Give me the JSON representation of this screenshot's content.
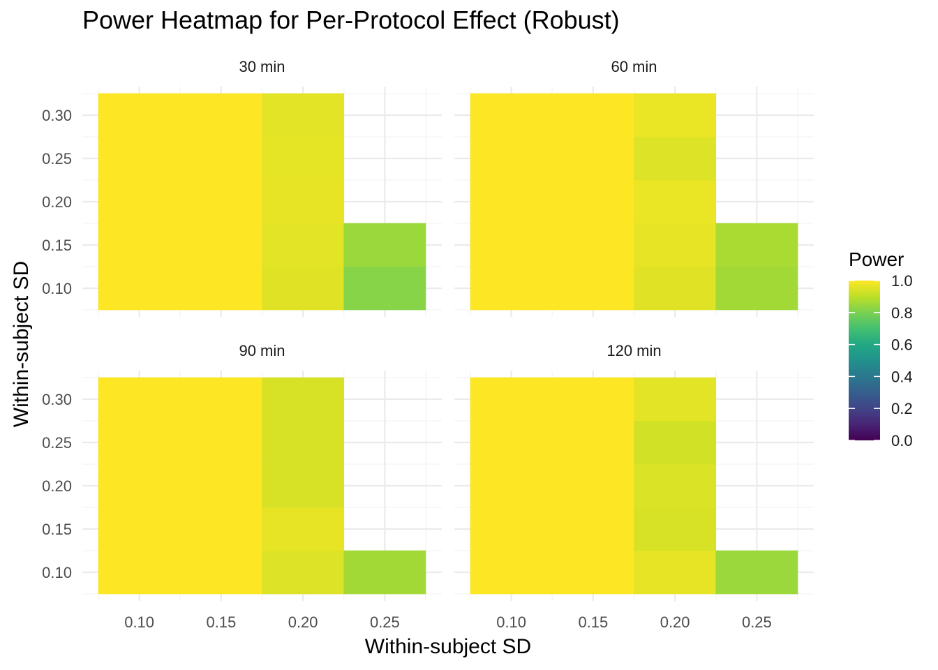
{
  "chart_data": {
    "type": "heatmap",
    "title": "Power Heatmap for Per-Protocol Effect (Robust)",
    "xlabel": "Within-subject SD",
    "ylabel": "Within-subject SD",
    "x_ticks": [
      "0.10",
      "0.15",
      "0.20",
      "0.25"
    ],
    "y_ticks": [
      "0.10",
      "0.15",
      "0.20",
      "0.25",
      "0.30"
    ],
    "x_categories": [
      0.1,
      0.15,
      0.2,
      0.25
    ],
    "y_categories": [
      0.1,
      0.15,
      0.2,
      0.25,
      0.3
    ],
    "xlim": [
      0.075,
      0.275
    ],
    "ylim": [
      0.075,
      0.325
    ],
    "grid": true,
    "colorscale": "viridis",
    "legend": {
      "title": "Power",
      "position": "right",
      "ticks": [
        "0.0",
        "0.2",
        "0.4",
        "0.6",
        "0.8",
        "1.0"
      ],
      "range": [
        0,
        1
      ]
    },
    "panels": [
      {
        "label": "30 min",
        "cells": [
          {
            "x": 0.1,
            "y": 0.1,
            "power": 1.0
          },
          {
            "x": 0.1,
            "y": 0.15,
            "power": 1.0
          },
          {
            "x": 0.1,
            "y": 0.2,
            "power": 1.0
          },
          {
            "x": 0.1,
            "y": 0.25,
            "power": 1.0
          },
          {
            "x": 0.1,
            "y": 0.3,
            "power": 1.0
          },
          {
            "x": 0.15,
            "y": 0.1,
            "power": 1.0
          },
          {
            "x": 0.15,
            "y": 0.15,
            "power": 1.0
          },
          {
            "x": 0.15,
            "y": 0.2,
            "power": 1.0
          },
          {
            "x": 0.15,
            "y": 0.25,
            "power": 1.0
          },
          {
            "x": 0.15,
            "y": 0.3,
            "power": 1.0
          },
          {
            "x": 0.2,
            "y": 0.1,
            "power": 0.955
          },
          {
            "x": 0.2,
            "y": 0.15,
            "power": 0.96
          },
          {
            "x": 0.2,
            "y": 0.2,
            "power": 0.965
          },
          {
            "x": 0.2,
            "y": 0.25,
            "power": 0.962
          },
          {
            "x": 0.2,
            "y": 0.3,
            "power": 0.958
          },
          {
            "x": 0.25,
            "y": 0.1,
            "power": 0.82
          },
          {
            "x": 0.25,
            "y": 0.15,
            "power": 0.85
          }
        ]
      },
      {
        "label": "60 min",
        "cells": [
          {
            "x": 0.1,
            "y": 0.1,
            "power": 1.0
          },
          {
            "x": 0.1,
            "y": 0.15,
            "power": 1.0
          },
          {
            "x": 0.1,
            "y": 0.2,
            "power": 1.0
          },
          {
            "x": 0.1,
            "y": 0.25,
            "power": 1.0
          },
          {
            "x": 0.1,
            "y": 0.3,
            "power": 1.0
          },
          {
            "x": 0.15,
            "y": 0.1,
            "power": 1.0
          },
          {
            "x": 0.15,
            "y": 0.15,
            "power": 1.0
          },
          {
            "x": 0.15,
            "y": 0.2,
            "power": 1.0
          },
          {
            "x": 0.15,
            "y": 0.25,
            "power": 1.0
          },
          {
            "x": 0.15,
            "y": 0.3,
            "power": 1.0
          },
          {
            "x": 0.2,
            "y": 0.1,
            "power": 0.955
          },
          {
            "x": 0.2,
            "y": 0.15,
            "power": 0.965
          },
          {
            "x": 0.2,
            "y": 0.2,
            "power": 0.97
          },
          {
            "x": 0.2,
            "y": 0.25,
            "power": 0.95
          },
          {
            "x": 0.2,
            "y": 0.3,
            "power": 0.97
          },
          {
            "x": 0.25,
            "y": 0.1,
            "power": 0.86
          },
          {
            "x": 0.25,
            "y": 0.15,
            "power": 0.87
          }
        ]
      },
      {
        "label": "90 min",
        "cells": [
          {
            "x": 0.1,
            "y": 0.1,
            "power": 1.0
          },
          {
            "x": 0.1,
            "y": 0.15,
            "power": 1.0
          },
          {
            "x": 0.1,
            "y": 0.2,
            "power": 1.0
          },
          {
            "x": 0.1,
            "y": 0.25,
            "power": 1.0
          },
          {
            "x": 0.1,
            "y": 0.3,
            "power": 1.0
          },
          {
            "x": 0.15,
            "y": 0.1,
            "power": 1.0
          },
          {
            "x": 0.15,
            "y": 0.15,
            "power": 1.0
          },
          {
            "x": 0.15,
            "y": 0.2,
            "power": 1.0
          },
          {
            "x": 0.15,
            "y": 0.25,
            "power": 1.0
          },
          {
            "x": 0.15,
            "y": 0.3,
            "power": 1.0
          },
          {
            "x": 0.2,
            "y": 0.1,
            "power": 0.95
          },
          {
            "x": 0.2,
            "y": 0.15,
            "power": 0.965
          },
          {
            "x": 0.2,
            "y": 0.2,
            "power": 0.94
          },
          {
            "x": 0.2,
            "y": 0.25,
            "power": 0.94
          },
          {
            "x": 0.2,
            "y": 0.3,
            "power": 0.94
          },
          {
            "x": 0.25,
            "y": 0.1,
            "power": 0.86
          }
        ]
      },
      {
        "label": "120 min",
        "cells": [
          {
            "x": 0.1,
            "y": 0.1,
            "power": 1.0
          },
          {
            "x": 0.1,
            "y": 0.15,
            "power": 1.0
          },
          {
            "x": 0.1,
            "y": 0.2,
            "power": 1.0
          },
          {
            "x": 0.1,
            "y": 0.25,
            "power": 1.0
          },
          {
            "x": 0.1,
            "y": 0.3,
            "power": 1.0
          },
          {
            "x": 0.15,
            "y": 0.1,
            "power": 1.0
          },
          {
            "x": 0.15,
            "y": 0.15,
            "power": 1.0
          },
          {
            "x": 0.15,
            "y": 0.2,
            "power": 1.0
          },
          {
            "x": 0.15,
            "y": 0.25,
            "power": 1.0
          },
          {
            "x": 0.15,
            "y": 0.3,
            "power": 1.0
          },
          {
            "x": 0.2,
            "y": 0.1,
            "power": 0.965
          },
          {
            "x": 0.2,
            "y": 0.15,
            "power": 0.94
          },
          {
            "x": 0.2,
            "y": 0.2,
            "power": 0.945
          },
          {
            "x": 0.2,
            "y": 0.25,
            "power": 0.93
          },
          {
            "x": 0.2,
            "y": 0.3,
            "power": 0.96
          },
          {
            "x": 0.25,
            "y": 0.1,
            "power": 0.85
          }
        ]
      }
    ]
  },
  "colors": {
    "background": "#ffffff",
    "grid_major": "#ebebeb",
    "grid_minor": "#f4f4f4",
    "axis_text": "#4d4d4d",
    "title_text": "#000000"
  }
}
